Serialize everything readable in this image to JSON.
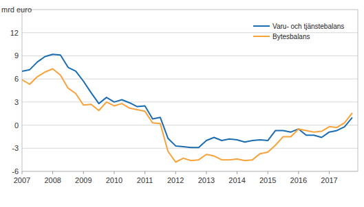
{
  "chart_data": {
    "type": "line",
    "y_label": "mrd euro",
    "categories": [
      "2007",
      null,
      null,
      null,
      "2008",
      null,
      null,
      null,
      "2009",
      null,
      null,
      null,
      "2010",
      null,
      null,
      null,
      "2011",
      null,
      null,
      null,
      "2012",
      null,
      null,
      null,
      "2013",
      null,
      null,
      null,
      "2014",
      null,
      null,
      null,
      "2015",
      null,
      null,
      null,
      "2016",
      null,
      null,
      null,
      "2017",
      null,
      null,
      null
    ],
    "series": [
      {
        "name": "Varu- och tjänstebalans",
        "color": "#1b6cb0",
        "values": [
          7.0,
          7.2,
          8.2,
          8.9,
          9.2,
          9.1,
          7.5,
          7.0,
          5.7,
          4.2,
          2.8,
          3.6,
          3.0,
          3.3,
          2.9,
          2.4,
          2.5,
          0.8,
          1.0,
          -1.7,
          -2.7,
          -2.8,
          -2.9,
          -2.9,
          -2.0,
          -1.6,
          -2.0,
          -1.8,
          -1.9,
          -2.2,
          -2.0,
          -1.9,
          -2.0,
          -0.7,
          -0.7,
          -0.9,
          -0.5,
          -1.3,
          -1.3,
          -1.6,
          -0.9,
          -0.7,
          -0.2,
          1.0
        ]
      },
      {
        "name": "Bytesbalans",
        "color": "#f7a23b",
        "values": [
          5.9,
          5.3,
          6.3,
          6.9,
          7.3,
          6.5,
          4.8,
          4.1,
          2.6,
          2.7,
          1.9,
          3.0,
          2.5,
          2.8,
          2.2,
          2.0,
          1.8,
          0.3,
          0.2,
          -3.4,
          -4.8,
          -4.3,
          -4.6,
          -4.5,
          -3.8,
          -4.0,
          -4.5,
          -4.5,
          -4.4,
          -4.6,
          -4.5,
          -3.7,
          -3.5,
          -2.6,
          -1.5,
          -1.5,
          -0.5,
          -0.7,
          -0.9,
          -0.8,
          -0.2,
          -0.3,
          0.3,
          1.6
        ]
      }
    ],
    "ylim": [
      -6,
      15
    ],
    "yticks": [
      -6,
      -3,
      0,
      3,
      6,
      9,
      12
    ],
    "grid": true,
    "legend": "upper-right"
  }
}
